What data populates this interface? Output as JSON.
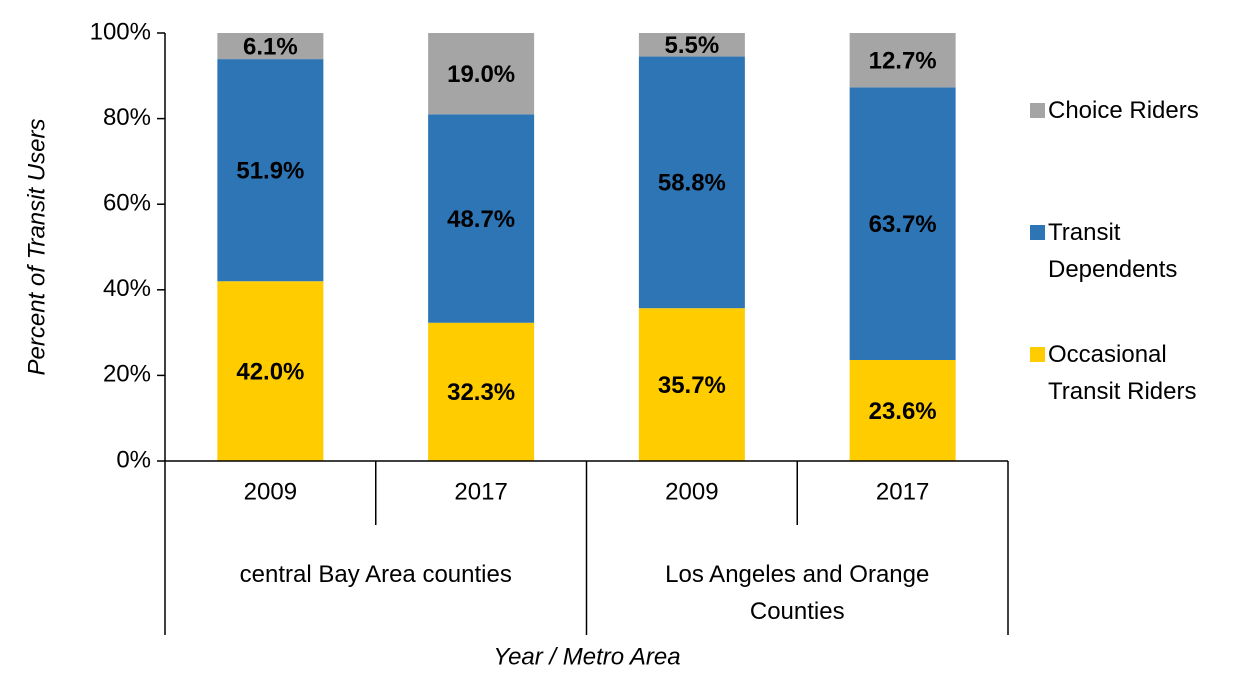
{
  "chart_data": {
    "type": "stacked_bar",
    "y_label": "Percent of Transit Users",
    "x_label": "Year / Metro Area",
    "groups": [
      {
        "name": "central Bay Area counties",
        "categories": [
          "2009",
          "2017"
        ]
      },
      {
        "name": "Los Angeles and Orange Counties",
        "categories": [
          "2009",
          "2017"
        ]
      }
    ],
    "series": [
      {
        "name": "Occasional Transit Riders",
        "color": "#FFCC00",
        "label_color": "#000000",
        "values": [
          42.0,
          32.3,
          35.7,
          23.6
        ],
        "value_labels": [
          "42.0%",
          "32.3%",
          "35.7%",
          "23.6%"
        ]
      },
      {
        "name": "Transit Dependents",
        "color": "#2E75B6",
        "label_color": "#FFFFFF",
        "values": [
          51.9,
          48.7,
          58.8,
          63.7
        ],
        "value_labels": [
          "51.9%",
          "48.7%",
          "58.8%",
          "63.7%"
        ]
      },
      {
        "name": "Choice Riders",
        "color": "#A5A5A5",
        "label_color": "#000000",
        "values": [
          6.1,
          19.0,
          5.5,
          12.7
        ],
        "value_labels": [
          "6.1%",
          "19.0%",
          "5.5%",
          "12.7%"
        ]
      }
    ],
    "ylim": [
      0,
      100
    ],
    "yticks": [
      {
        "value": 0,
        "label": "0%"
      },
      {
        "value": 20,
        "label": "20%"
      },
      {
        "value": 40,
        "label": "40%"
      },
      {
        "value": 60,
        "label": "60%"
      },
      {
        "value": 80,
        "label": "80%"
      },
      {
        "value": 100,
        "label": "100%"
      }
    ],
    "grid": false,
    "legend": "right"
  }
}
